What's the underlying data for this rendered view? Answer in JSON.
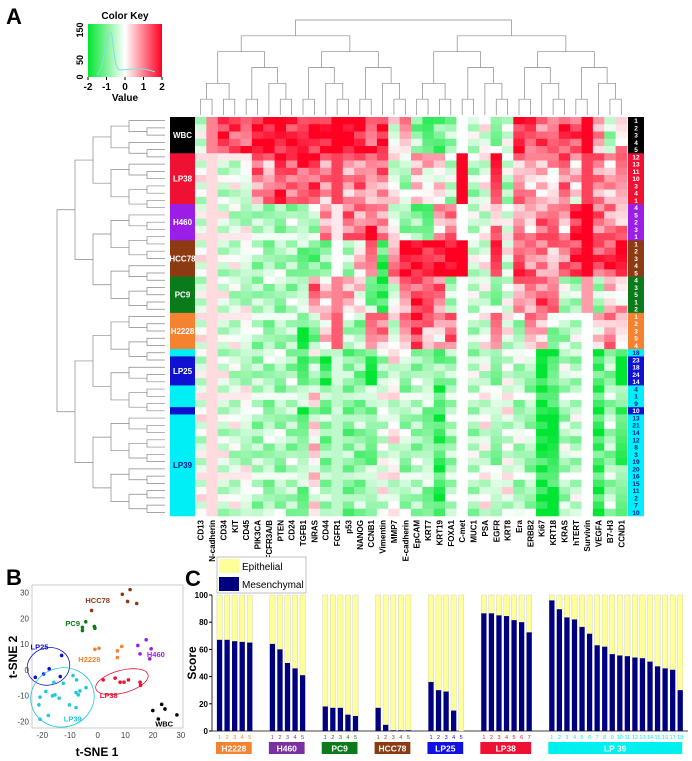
{
  "panels": {
    "a": "A",
    "b": "B",
    "c": "C"
  },
  "colors": {
    "high": "#ff0022",
    "low": "#00e632",
    "mid": "#ffffff",
    "epithelial": "#ffff99",
    "mesenchymal": "#00007f"
  },
  "groups": {
    "WBC": {
      "label": "WBC",
      "color": "#000000",
      "text": "#ffffff"
    },
    "LP38": {
      "label": "LP38",
      "color": "#ee1133",
      "text": "#ffffff"
    },
    "H460": {
      "label": "H460",
      "color": "#9b1ee6",
      "text": "#ffffff"
    },
    "HCC78": {
      "label": "HCC78",
      "color": "#8b3a12",
      "text": "#ffffff"
    },
    "PC9": {
      "label": "PC9",
      "color": "#0a7a1a",
      "text": "#ffffff"
    },
    "H2228": {
      "label": "H2228",
      "color": "#f58231",
      "text": "#ffffff"
    },
    "LP25": {
      "label": "LP25",
      "color": "#1010d0",
      "text": "#ffffff"
    },
    "LP39": {
      "label": "LP39",
      "color": "#00eef5",
      "text": "#0a1a8a"
    }
  },
  "chart_data": [
    {
      "type": "heatmap",
      "title": "Color Key",
      "color_key": {
        "xlabel": "Value",
        "xticks": [
          "-2",
          "-1",
          "0",
          "1",
          "2"
        ],
        "yticks": [
          "0",
          "50",
          "150"
        ],
        "range": [
          -2,
          2
        ]
      },
      "columns": [
        "CD13",
        "N-cadherin",
        "CD34",
        "KIT",
        "CD45",
        "PIK3CA",
        "FCFR3A/B",
        "PTEN",
        "CD24",
        "TGFB1",
        "NRAS",
        "CD44",
        "FGFR1",
        "p53",
        "NANOG",
        "CCNB1",
        "Vimentin",
        "MMP7",
        "E-cadherin",
        "EpCAM",
        "KRT7",
        "KRT19",
        "FOXA1",
        "C-met",
        "MUC1",
        "PSA",
        "EGFR",
        "KRT8",
        "Era",
        "ERBB2",
        "Ki67",
        "KRT18",
        "KRAS",
        "hTERT",
        "Survivin",
        "VEGFA",
        "B7-H3",
        "CCND1"
      ],
      "rows": [
        {
          "group": "WBC",
          "id": "1"
        },
        {
          "group": "WBC",
          "id": "2"
        },
        {
          "group": "WBC",
          "id": "3"
        },
        {
          "group": "WBC",
          "id": "4"
        },
        {
          "group": "WBC",
          "id": "5"
        },
        {
          "group": "LP38",
          "id": "12"
        },
        {
          "group": "LP38",
          "id": "13"
        },
        {
          "group": "LP38",
          "id": "11"
        },
        {
          "group": "LP38",
          "id": "10"
        },
        {
          "group": "LP38",
          "id": "3"
        },
        {
          "group": "LP38",
          "id": "4"
        },
        {
          "group": "LP38",
          "id": "1"
        },
        {
          "group": "H460",
          "id": "4"
        },
        {
          "group": "H460",
          "id": "5"
        },
        {
          "group": "H460",
          "id": "2"
        },
        {
          "group": "H460",
          "id": "3"
        },
        {
          "group": "H460",
          "id": "1"
        },
        {
          "group": "HCC78",
          "id": "1"
        },
        {
          "group": "HCC78",
          "id": "2"
        },
        {
          "group": "HCC78",
          "id": "3"
        },
        {
          "group": "HCC78",
          "id": "4"
        },
        {
          "group": "HCC78",
          "id": "5"
        },
        {
          "group": "PC9",
          "id": "4"
        },
        {
          "group": "PC9",
          "id": "3"
        },
        {
          "group": "PC9",
          "id": "5"
        },
        {
          "group": "PC9",
          "id": "1"
        },
        {
          "group": "PC9",
          "id": "2"
        },
        {
          "group": "H2228",
          "id": "1"
        },
        {
          "group": "H2228",
          "id": "2"
        },
        {
          "group": "H2228",
          "id": "3"
        },
        {
          "group": "H2228",
          "id": "5"
        },
        {
          "group": "H2228",
          "id": "4"
        },
        {
          "group": "LP39",
          "id": "18"
        },
        {
          "group": "LP25",
          "id": "23"
        },
        {
          "group": "LP25",
          "id": "18"
        },
        {
          "group": "LP25",
          "id": "24"
        },
        {
          "group": "LP25",
          "id": "14"
        },
        {
          "group": "LP39",
          "id": "4"
        },
        {
          "group": "LP39",
          "id": "1"
        },
        {
          "group": "LP39",
          "id": "9"
        },
        {
          "group": "LP25",
          "id": "10"
        },
        {
          "group": "LP39",
          "id": "13"
        },
        {
          "group": "LP39",
          "id": "21"
        },
        {
          "group": "LP39",
          "id": "14"
        },
        {
          "group": "LP39",
          "id": "12"
        },
        {
          "group": "LP39",
          "id": "8"
        },
        {
          "group": "LP39",
          "id": "3"
        },
        {
          "group": "LP39",
          "id": "19"
        },
        {
          "group": "LP39",
          "id": "20"
        },
        {
          "group": "LP39",
          "id": "16"
        },
        {
          "group": "LP39",
          "id": "15"
        },
        {
          "group": "LP39",
          "id": "11"
        },
        {
          "group": "LP39",
          "id": "2"
        },
        {
          "group": "LP39",
          "id": "7"
        },
        {
          "group": "LP39",
          "id": "10"
        }
      ],
      "group_profiles": {
        "WBC": [
          -0.2,
          0.5,
          1.5,
          1.5,
          1.5,
          2,
          2,
          2,
          1.8,
          1.5,
          1.8,
          2,
          2,
          2,
          2,
          1.5,
          1.8,
          -0.1,
          0.8,
          -0.8,
          -1.5,
          -1.2,
          -0.6,
          -0.5,
          -0.5,
          0,
          -0.6,
          -0.2,
          1.8,
          1.5,
          1.2,
          1,
          1.5,
          1.5,
          1.5,
          0.6,
          -0.5,
          0.6
        ],
        "LP38": [
          -0.2,
          -0.2,
          -0.3,
          -0.3,
          -0.3,
          1,
          0.8,
          1.5,
          1.2,
          1.5,
          1.5,
          0.8,
          1,
          0.8,
          1,
          0.6,
          1,
          -0.1,
          -0.6,
          0.5,
          0.3,
          0.3,
          -0.5,
          1.5,
          -0.5,
          -0.2,
          1.5,
          -0.5,
          0.8,
          0.5,
          0.5,
          0.5,
          1.2,
          0.3,
          1,
          1,
          0.5,
          0.8
        ],
        "H460": [
          -0.2,
          -0.2,
          -0.3,
          -0.3,
          -0.3,
          -0.6,
          -0.6,
          -0.6,
          -0.6,
          -0.8,
          -0.6,
          0.8,
          -0.3,
          1,
          1,
          1.5,
          0.8,
          -0.1,
          -0.6,
          -1,
          -1.5,
          0.5,
          1,
          -0.5,
          -0.5,
          -0.2,
          0.8,
          -0.2,
          0.8,
          0.6,
          1,
          1,
          0.5,
          1.8,
          1.8,
          1,
          1,
          0.8
        ],
        "HCC78": [
          -0.2,
          -0.2,
          -0.3,
          -0.3,
          -0.3,
          -0.6,
          -0.6,
          -0.6,
          -0.6,
          -0.8,
          -1,
          -1,
          -0.5,
          -0.5,
          0.3,
          1,
          -1.5,
          1,
          2,
          2,
          2,
          2,
          2,
          2,
          -0.2,
          -0.2,
          1.5,
          -0.2,
          1.5,
          1,
          1,
          0.8,
          1.2,
          1.5,
          1.5,
          1.5,
          1.5,
          1.8
        ],
        "PC9": [
          -0.2,
          -0.2,
          -0.3,
          -0.3,
          -0.3,
          -0.6,
          -0.6,
          -0.6,
          -0.6,
          -0.5,
          1,
          0.5,
          0.5,
          0.5,
          0.3,
          -0.8,
          -1.5,
          -0.1,
          1,
          1.5,
          1.2,
          1,
          -0.5,
          -0.5,
          -0.5,
          -0.2,
          -0.6,
          -0.2,
          0.8,
          1,
          1.2,
          1,
          -0.5,
          -0.5,
          0.3,
          -0.8,
          0.5,
          0.5
        ],
        "H2228": [
          -0.2,
          -0.2,
          -0.3,
          -0.3,
          -0.3,
          -0.6,
          -0.6,
          -0.6,
          -0.6,
          -1.5,
          -0.8,
          0.2,
          0.8,
          -0.5,
          -0.8,
          0.8,
          0.8,
          -0.1,
          0.8,
          1.5,
          0.8,
          0.5,
          1,
          -0.5,
          -0.5,
          -0.2,
          0.8,
          -0.2,
          -0.5,
          0.8,
          0.5,
          -0.6,
          -0.5,
          -0.5,
          -0.5,
          0.3,
          0.8,
          0
        ],
        "LP25": [
          -0.2,
          -0.2,
          -0.3,
          -0.3,
          -0.3,
          -0.6,
          -0.6,
          -0.6,
          -0.6,
          -1.5,
          -0.8,
          -1.5,
          -0.8,
          -0.9,
          -0.8,
          -1.5,
          -0.6,
          -0.1,
          -0.6,
          -0.6,
          -0.7,
          -1,
          -0.6,
          -0.5,
          -0.5,
          -0.2,
          -0.6,
          -0.2,
          -0.5,
          -0.6,
          -2,
          -1.2,
          -0.5,
          -0.5,
          -0.5,
          -1.5,
          -0.6,
          -2
        ],
        "LP39": [
          -0.2,
          -0.2,
          -0.3,
          -0.3,
          -0.3,
          -0.6,
          -0.6,
          -0.6,
          -0.6,
          -0.8,
          0.2,
          -0.8,
          -1,
          -0.9,
          -0.8,
          -0.8,
          -0.2,
          -0.1,
          -0.6,
          -0.6,
          -0.7,
          -1.5,
          -0.6,
          -0.5,
          -0.5,
          -0.2,
          -0.6,
          -0.2,
          -0.5,
          -0.6,
          -1.8,
          -1.8,
          -0.5,
          -0.5,
          -0.5,
          -1.5,
          -0.6,
          -1.2
        ]
      }
    },
    {
      "type": "scatter",
      "xlabel": "t-SNE 1",
      "ylabel": "t-SNE 2",
      "xlim": [
        -23.7,
        30.8
      ],
      "ylim": [
        -22.6,
        33
      ],
      "xticks": [
        -20,
        -10,
        0,
        10,
        20,
        30
      ],
      "yticks": [
        -20,
        -10,
        0,
        10,
        20,
        30
      ],
      "series": [
        {
          "name": "HCC78",
          "ellipse": false,
          "points": [
            [
              -2.2,
              23.1
            ],
            [
              8.9,
              29.4
            ],
            [
              11.7,
              31.2
            ],
            [
              10.8,
              26.6
            ],
            [
              14.1,
              25.8
            ]
          ]
        },
        {
          "name": "PC9",
          "ellipse": false,
          "points": [
            [
              -5.5,
              16.5
            ],
            [
              -4.3,
              18.7
            ],
            [
              -5.5,
              15.3
            ],
            [
              -1.2,
              16.9
            ],
            [
              -1,
              16.2
            ]
          ]
        },
        {
          "name": "H2228",
          "ellipse": false,
          "points": [
            [
              -1,
              8
            ],
            [
              0.5,
              8.4
            ],
            [
              7.1,
              7.4
            ],
            [
              8.7,
              9.1
            ],
            [
              7.1,
              4.8
            ]
          ]
        },
        {
          "name": "H460",
          "ellipse": false,
          "points": [
            [
              17.5,
              11.7
            ],
            [
              14.5,
              9.5
            ],
            [
              19.3,
              8.2
            ],
            [
              15.3,
              6.2
            ],
            [
              18.8,
              4.3
            ]
          ]
        },
        {
          "name": "LP25",
          "ellipse": true,
          "points": [
            [
              -13,
              5.6
            ],
            [
              -17.5,
              0.4
            ],
            [
              -19.5,
              -1.6
            ],
            [
              -22.5,
              -2.9
            ],
            [
              -13.5,
              -2.6
            ]
          ]
        },
        {
          "name": "LP38",
          "ellipse": true,
          "points": [
            [
              2,
              -3.9
            ],
            [
              6.3,
              -3.2
            ],
            [
              8.1,
              -4.8
            ],
            [
              9.5,
              -4.8
            ],
            [
              11.1,
              -3.9
            ],
            [
              15.3,
              -4.8
            ],
            [
              15.5,
              -6
            ]
          ]
        },
        {
          "name": "WBC",
          "ellipse": false,
          "points": [
            [
              19.9,
              -15.8
            ],
            [
              23.1,
              -13.4
            ],
            [
              24.3,
              -15.2
            ],
            [
              21.9,
              -19.1
            ],
            [
              28.6,
              -17.5
            ]
          ]
        },
        {
          "name": "LP39",
          "ellipse": true,
          "points": [
            [
              -8.9,
              -2.2
            ],
            [
              -7.6,
              -3.9
            ],
            [
              -12.4,
              -5.2
            ],
            [
              -15.8,
              -4.9
            ],
            [
              -4.2,
              -6.9
            ],
            [
              -6.4,
              -8.2
            ],
            [
              -7.8,
              -8.8
            ],
            [
              -7,
              -9.7
            ],
            [
              -18.7,
              -8.4
            ],
            [
              -20.8,
              -10.6
            ],
            [
              -15.4,
              -9.7
            ],
            [
              -16.3,
              -10.1
            ],
            [
              -13.9,
              -11
            ],
            [
              -21.2,
              -13.6
            ],
            [
              -10.2,
              -13.6
            ],
            [
              -7.8,
              -14.7
            ],
            [
              -17.8,
              -17.7
            ],
            [
              -20.8,
              -19.2
            ]
          ]
        }
      ]
    },
    {
      "type": "bar",
      "stacked": true,
      "ylabel": "Score",
      "ylim": [
        0,
        100
      ],
      "yticks": [
        0,
        20,
        40,
        60,
        80,
        100
      ],
      "legend": {
        "placement": "top-left",
        "entries": [
          "Epithelial",
          "Mesenchymal"
        ]
      },
      "groups": [
        {
          "name": "H2228",
          "label": "H2228",
          "mesenchymal": [
            67,
            67,
            66,
            65.5,
            65
          ]
        },
        {
          "name": "H460",
          "label": "H460",
          "mesenchymal": [
            64,
            60,
            50,
            46,
            41
          ]
        },
        {
          "name": "PC9",
          "label": "PC9",
          "mesenchymal": [
            18,
            17,
            17,
            12,
            11
          ]
        },
        {
          "name": "HCC78",
          "label": "HCC78",
          "mesenchymal": [
            17,
            4.5,
            0.5,
            0.5,
            0.5
          ]
        },
        {
          "name": "LP25",
          "label": "LP25",
          "mesenchymal": [
            36,
            30,
            29,
            15,
            0
          ]
        },
        {
          "name": "LP38",
          "label": "LP38",
          "mesenchymal": [
            86.5,
            86.5,
            85,
            84.5,
            81.5,
            80,
            72.5
          ]
        },
        {
          "name": "LP39",
          "label": "LP 39",
          "mesenchymal": [
            96,
            89.5,
            83.5,
            82,
            76.5,
            71.5,
            63,
            62,
            56.5,
            55.5,
            55,
            54,
            53.5,
            51,
            47.5,
            46,
            45,
            30
          ]
        }
      ]
    }
  ]
}
